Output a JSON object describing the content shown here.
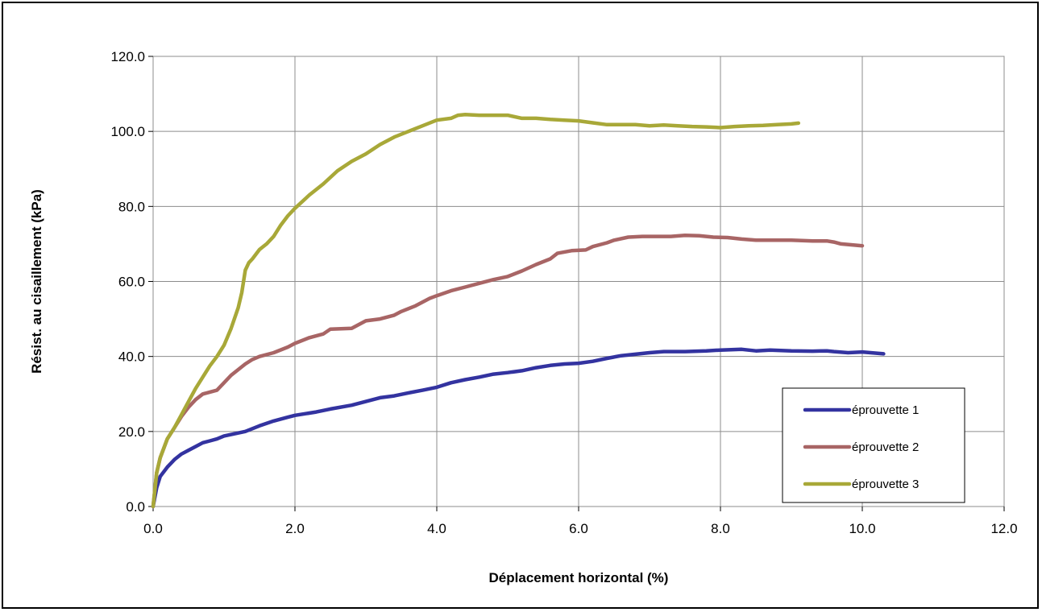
{
  "chart_data": {
    "type": "line",
    "xlabel": "Déplacement horizontal (%)",
    "ylabel": "Résist. au cisaillement (kPa)",
    "xlim": [
      0,
      12
    ],
    "ylim": [
      0,
      120
    ],
    "xticks": [
      "0.0",
      "2.0",
      "4.0",
      "6.0",
      "8.0",
      "10.0",
      "12.0"
    ],
    "yticks": [
      "0.0",
      "20.0",
      "40.0",
      "60.0",
      "80.0",
      "100.0",
      "120.0"
    ],
    "grid": true,
    "legend_position": "bottom-right",
    "series": [
      {
        "name": "éprouvette 1",
        "color": "#3333a0",
        "x": [
          0,
          0.05,
          0.1,
          0.2,
          0.3,
          0.4,
          0.5,
          0.6,
          0.7,
          0.8,
          0.9,
          1.0,
          1.1,
          1.3,
          1.5,
          1.7,
          1.9,
          2.0,
          2.3,
          2.5,
          2.8,
          3.0,
          3.2,
          3.4,
          3.6,
          3.8,
          4.0,
          4.2,
          4.4,
          4.6,
          4.8,
          5.0,
          5.2,
          5.4,
          5.6,
          5.8,
          6.0,
          6.2,
          6.4,
          6.6,
          6.8,
          7.0,
          7.2,
          7.5,
          7.8,
          8.0,
          8.3,
          8.5,
          8.7,
          9.0,
          9.3,
          9.5,
          9.6,
          9.8,
          10.0,
          10.3
        ],
        "y": [
          0,
          5,
          8,
          10.5,
          12.5,
          14,
          15,
          16,
          17,
          17.5,
          18,
          18.8,
          19.2,
          20,
          21.5,
          22.8,
          23.8,
          24.3,
          25.2,
          26,
          27,
          28,
          29,
          29.5,
          30.3,
          31,
          31.8,
          33,
          33.8,
          34.5,
          35.3,
          35.7,
          36.2,
          37,
          37.6,
          38,
          38.2,
          38.7,
          39.5,
          40.2,
          40.6,
          41,
          41.3,
          41.3,
          41.5,
          41.7,
          41.9,
          41.5,
          41.7,
          41.5,
          41.4,
          41.5,
          41.3,
          41,
          41.2,
          40.7
        ]
      },
      {
        "name": "éprouvette 2",
        "color": "#a86565",
        "x": [
          0,
          0.05,
          0.1,
          0.2,
          0.3,
          0.4,
          0.5,
          0.6,
          0.7,
          0.8,
          0.9,
          1.0,
          1.1,
          1.2,
          1.3,
          1.4,
          1.5,
          1.7,
          1.9,
          2.0,
          2.2,
          2.4,
          2.5,
          2.8,
          3.0,
          3.2,
          3.4,
          3.5,
          3.7,
          3.9,
          4.0,
          4.2,
          4.4,
          4.6,
          4.8,
          5.0,
          5.2,
          5.4,
          5.6,
          5.7,
          5.9,
          6.1,
          6.2,
          6.4,
          6.5,
          6.7,
          6.9,
          7.1,
          7.3,
          7.5,
          7.7,
          7.9,
          8.1,
          8.3,
          8.5,
          8.7,
          9.0,
          9.3,
          9.5,
          9.6,
          9.7,
          10.0
        ],
        "y": [
          0,
          9,
          13,
          18,
          21,
          24,
          26.5,
          28.5,
          30,
          30.5,
          31,
          33,
          35,
          36.5,
          38,
          39.2,
          40,
          41,
          42.5,
          43.5,
          45,
          46,
          47.3,
          47.5,
          49.5,
          50,
          51,
          52,
          53.5,
          55.5,
          56.2,
          57.5,
          58.5,
          59.5,
          60.5,
          61.3,
          62.8,
          64.5,
          66,
          67.5,
          68.2,
          68.4,
          69.3,
          70.3,
          71,
          71.8,
          72,
          72,
          72,
          72.3,
          72.2,
          71.8,
          71.7,
          71.3,
          71,
          71,
          71,
          70.8,
          70.8,
          70.5,
          70,
          69.5
        ]
      },
      {
        "name": "éprouvette 3",
        "color": "#a8a838",
        "x": [
          0,
          0.05,
          0.1,
          0.2,
          0.3,
          0.4,
          0.5,
          0.6,
          0.7,
          0.8,
          0.9,
          1.0,
          1.1,
          1.2,
          1.25,
          1.3,
          1.35,
          1.4,
          1.5,
          1.6,
          1.7,
          1.8,
          1.9,
          2.0,
          2.2,
          2.4,
          2.6,
          2.8,
          3.0,
          3.2,
          3.4,
          3.6,
          3.8,
          4.0,
          4.2,
          4.3,
          4.4,
          4.6,
          4.8,
          5.0,
          5.2,
          5.4,
          5.6,
          5.8,
          6.0,
          6.2,
          6.4,
          6.6,
          6.8,
          7.0,
          7.2,
          7.4,
          7.6,
          7.8,
          8.0,
          8.2,
          8.4,
          8.6,
          8.8,
          9.0,
          9.1
        ],
        "y": [
          0,
          9,
          13,
          18,
          21,
          24.5,
          28,
          31.5,
          34.5,
          37.5,
          40,
          43,
          47.5,
          53,
          57,
          63,
          65,
          66,
          68.5,
          70,
          72,
          75,
          77.5,
          79.5,
          83,
          86,
          89.5,
          92,
          94,
          96.5,
          98.5,
          100,
          101.5,
          103,
          103.5,
          104.3,
          104.5,
          104.3,
          104.3,
          104.3,
          103.5,
          103.5,
          103.2,
          103,
          102.8,
          102.3,
          101.8,
          101.8,
          101.8,
          101.5,
          101.7,
          101.5,
          101.3,
          101.2,
          101,
          101.3,
          101.5,
          101.6,
          101.8,
          102,
          102.2
        ]
      }
    ]
  }
}
